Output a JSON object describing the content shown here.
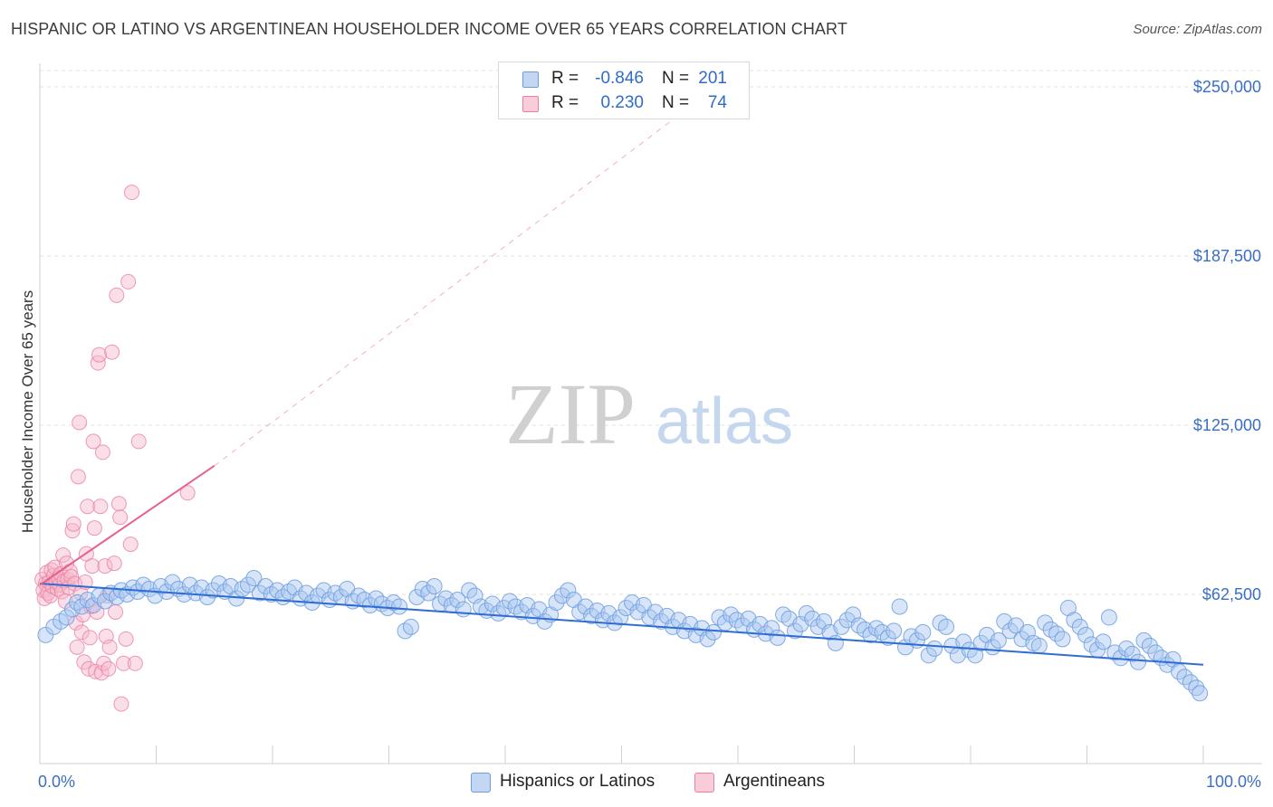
{
  "header": {
    "title": "HISPANIC OR LATINO VS ARGENTINEAN HOUSEHOLDER INCOME OVER 65 YEARS CORRELATION CHART",
    "source": "Source: ZipAtlas.com"
  },
  "watermark": {
    "zip": "ZIP",
    "atlas": "atlas"
  },
  "legend": {
    "rows": [
      {
        "r_label": "R =",
        "r_value": "-0.846",
        "n_label": "N =",
        "n_value": "201",
        "color": "#a9c6f0"
      },
      {
        "r_label": "R =",
        "r_value": "0.230",
        "n_label": "N =",
        "n_value": "74",
        "color": "#f6b8cc"
      }
    ]
  },
  "bottom_legend": {
    "items": [
      {
        "label": "Hispanics or Latinos",
        "color": "#a9c6f0"
      },
      {
        "label": "Argentineans",
        "color": "#f6b8cc"
      }
    ]
  },
  "chart_data": {
    "type": "scatter",
    "title": "HISPANIC OR LATINO VS ARGENTINEAN HOUSEHOLDER INCOME OVER 65 YEARS CORRELATION CHART",
    "xlabel": "",
    "ylabel": "Householder Income Over 65 years",
    "xlim": [
      0,
      100
    ],
    "ylim": [
      0,
      256000
    ],
    "x_tick_labels": [
      "0.0%",
      "100.0%"
    ],
    "y_ticks": [
      62500,
      125000,
      187500,
      250000
    ],
    "y_tick_labels": [
      "$62,500",
      "$125,000",
      "$187,500",
      "$250,000"
    ],
    "grid": "horizontal dashed",
    "legend_position": "top-center",
    "colors": {
      "blue_fill": "#a9c6f0",
      "blue_stroke": "#6b9de0",
      "blue_line": "#2f6cd3",
      "pink_fill": "#f6b8cc",
      "pink_stroke": "#ec7fa1",
      "pink_line": "#e8608a"
    },
    "series": [
      {
        "name": "Hispanics or Latinos",
        "r": -0.846,
        "n": 201,
        "trend": {
          "x": [
            0,
            100
          ],
          "y": [
            66500,
            36500
          ]
        },
        "points": [
          [
            0.5,
            47500
          ],
          [
            1.2,
            50500
          ],
          [
            1.8,
            52500
          ],
          [
            2.3,
            54000
          ],
          [
            2.8,
            57000
          ],
          [
            3.2,
            59500
          ],
          [
            3.6,
            58000
          ],
          [
            4.1,
            60500
          ],
          [
            4.6,
            58500
          ],
          [
            5.1,
            62000
          ],
          [
            5.6,
            60000
          ],
          [
            6.1,
            63000
          ],
          [
            6.6,
            61500
          ],
          [
            7.0,
            64000
          ],
          [
            7.5,
            62500
          ],
          [
            8.0,
            65000
          ],
          [
            8.4,
            63500
          ],
          [
            8.9,
            66000
          ],
          [
            9.4,
            64500
          ],
          [
            9.9,
            62000
          ],
          [
            10.4,
            65500
          ],
          [
            10.9,
            63500
          ],
          [
            11.4,
            67000
          ],
          [
            11.9,
            64500
          ],
          [
            12.4,
            62500
          ],
          [
            12.9,
            66000
          ],
          [
            13.4,
            63000
          ],
          [
            13.9,
            65000
          ],
          [
            14.4,
            61500
          ],
          [
            14.9,
            64000
          ],
          [
            15.4,
            66500
          ],
          [
            15.9,
            63500
          ],
          [
            16.4,
            65500
          ],
          [
            16.9,
            61000
          ],
          [
            17.4,
            64500
          ],
          [
            17.9,
            66000
          ],
          [
            18.4,
            68500
          ],
          [
            18.9,
            63000
          ],
          [
            19.4,
            65500
          ],
          [
            19.9,
            62500
          ],
          [
            20.4,
            64000
          ],
          [
            20.9,
            61500
          ],
          [
            21.4,
            63500
          ],
          [
            21.9,
            65000
          ],
          [
            22.4,
            61000
          ],
          [
            22.9,
            63000
          ],
          [
            23.4,
            59500
          ],
          [
            23.9,
            62000
          ],
          [
            24.4,
            64000
          ],
          [
            24.9,
            60500
          ],
          [
            25.4,
            63000
          ],
          [
            25.9,
            61500
          ],
          [
            26.4,
            64500
          ],
          [
            26.9,
            60000
          ],
          [
            27.4,
            62000
          ],
          [
            27.9,
            60500
          ],
          [
            28.4,
            58500
          ],
          [
            28.9,
            61000
          ],
          [
            29.4,
            59000
          ],
          [
            29.9,
            57500
          ],
          [
            30.4,
            59500
          ],
          [
            30.9,
            58000
          ],
          [
            31.4,
            49000
          ],
          [
            31.9,
            50500
          ],
          [
            32.4,
            61500
          ],
          [
            32.9,
            64500
          ],
          [
            33.4,
            63000
          ],
          [
            33.9,
            65500
          ],
          [
            34.4,
            59000
          ],
          [
            34.9,
            61000
          ],
          [
            35.4,
            58500
          ],
          [
            35.9,
            60500
          ],
          [
            36.4,
            57000
          ],
          [
            36.9,
            64000
          ],
          [
            37.4,
            62000
          ],
          [
            37.9,
            58000
          ],
          [
            38.4,
            56500
          ],
          [
            38.9,
            59000
          ],
          [
            39.4,
            55500
          ],
          [
            39.9,
            57500
          ],
          [
            40.4,
            60000
          ],
          [
            40.9,
            58000
          ],
          [
            41.4,
            56000
          ],
          [
            41.9,
            58500
          ],
          [
            42.4,
            54500
          ],
          [
            42.9,
            57000
          ],
          [
            43.4,
            52500
          ],
          [
            43.9,
            55000
          ],
          [
            44.4,
            59500
          ],
          [
            44.9,
            62000
          ],
          [
            45.4,
            64000
          ],
          [
            45.9,
            60500
          ],
          [
            46.4,
            56000
          ],
          [
            46.9,
            58000
          ],
          [
            47.4,
            54500
          ],
          [
            47.9,
            56500
          ],
          [
            48.4,
            53000
          ],
          [
            48.9,
            55500
          ],
          [
            49.4,
            52000
          ],
          [
            49.9,
            54000
          ],
          [
            50.4,
            57500
          ],
          [
            50.9,
            59500
          ],
          [
            51.4,
            56000
          ],
          [
            51.9,
            58500
          ],
          [
            52.4,
            54000
          ],
          [
            52.9,
            56000
          ],
          [
            53.4,
            52500
          ],
          [
            53.9,
            54500
          ],
          [
            54.4,
            50500
          ],
          [
            54.9,
            53000
          ],
          [
            55.4,
            49000
          ],
          [
            55.9,
            51500
          ],
          [
            56.4,
            47500
          ],
          [
            56.9,
            50000
          ],
          [
            57.4,
            46000
          ],
          [
            57.9,
            48500
          ],
          [
            58.4,
            54000
          ],
          [
            58.9,
            52000
          ],
          [
            59.4,
            55000
          ],
          [
            59.9,
            53000
          ],
          [
            60.4,
            51000
          ],
          [
            60.9,
            53500
          ],
          [
            61.4,
            49500
          ],
          [
            61.9,
            51500
          ],
          [
            62.4,
            48000
          ],
          [
            62.9,
            50000
          ],
          [
            63.4,
            46500
          ],
          [
            63.9,
            55000
          ],
          [
            64.4,
            53500
          ],
          [
            64.9,
            49000
          ],
          [
            65.4,
            51500
          ],
          [
            65.9,
            55500
          ],
          [
            66.4,
            53500
          ],
          [
            66.9,
            50500
          ],
          [
            67.4,
            52500
          ],
          [
            67.9,
            48500
          ],
          [
            68.4,
            44500
          ],
          [
            68.9,
            50500
          ],
          [
            69.4,
            53000
          ],
          [
            69.9,
            55000
          ],
          [
            70.4,
            51000
          ],
          [
            70.9,
            49500
          ],
          [
            71.4,
            47500
          ],
          [
            71.9,
            50000
          ],
          [
            72.4,
            48500
          ],
          [
            72.9,
            46500
          ],
          [
            73.4,
            49000
          ],
          [
            73.9,
            58000
          ],
          [
            74.4,
            43000
          ],
          [
            74.9,
            47000
          ],
          [
            75.4,
            45500
          ],
          [
            75.9,
            48500
          ],
          [
            76.4,
            40000
          ],
          [
            76.9,
            42500
          ],
          [
            77.4,
            52000
          ],
          [
            77.9,
            50500
          ],
          [
            78.4,
            43500
          ],
          [
            78.9,
            40000
          ],
          [
            79.4,
            45000
          ],
          [
            79.9,
            42000
          ],
          [
            80.4,
            40000
          ],
          [
            80.9,
            44500
          ],
          [
            81.4,
            47500
          ],
          [
            81.9,
            43000
          ],
          [
            82.4,
            45500
          ],
          [
            82.9,
            52500
          ],
          [
            83.4,
            49000
          ],
          [
            83.9,
            51000
          ],
          [
            84.4,
            46000
          ],
          [
            84.9,
            48500
          ],
          [
            85.4,
            44500
          ],
          [
            85.9,
            43500
          ],
          [
            86.4,
            52000
          ],
          [
            86.9,
            49500
          ],
          [
            87.4,
            48000
          ],
          [
            87.9,
            46000
          ],
          [
            88.4,
            57500
          ],
          [
            88.9,
            53000
          ],
          [
            89.4,
            50500
          ],
          [
            89.9,
            47500
          ],
          [
            90.4,
            44000
          ],
          [
            90.9,
            42000
          ],
          [
            91.4,
            45000
          ],
          [
            91.9,
            54000
          ],
          [
            92.4,
            41000
          ],
          [
            92.9,
            39000
          ],
          [
            93.4,
            42500
          ],
          [
            93.9,
            40500
          ],
          [
            94.4,
            37500
          ],
          [
            94.9,
            45500
          ],
          [
            95.4,
            43500
          ],
          [
            95.9,
            41000
          ],
          [
            96.4,
            39000
          ],
          [
            96.9,
            36500
          ],
          [
            97.4,
            38500
          ],
          [
            97.9,
            34000
          ],
          [
            98.4,
            32000
          ],
          [
            98.9,
            30000
          ],
          [
            99.4,
            28000
          ],
          [
            99.7,
            26000
          ]
        ]
      },
      {
        "name": "Argentineans",
        "r": 0.23,
        "n": 74,
        "trend": {
          "x": [
            0,
            15
          ],
          "y": [
            66000,
            110000
          ],
          "dashed_to": [
            60,
            256000
          ]
        },
        "points": [
          [
            0.2,
            68000
          ],
          [
            0.3,
            64000
          ],
          [
            0.4,
            61000
          ],
          [
            0.5,
            66500
          ],
          [
            0.6,
            70500
          ],
          [
            0.7,
            63000
          ],
          [
            0.8,
            67000
          ],
          [
            0.9,
            62000
          ],
          [
            1.0,
            71500
          ],
          [
            1.1,
            65500
          ],
          [
            1.2,
            69500
          ],
          [
            1.3,
            72500
          ],
          [
            1.4,
            67000
          ],
          [
            1.5,
            64500
          ],
          [
            1.6,
            68500
          ],
          [
            1.7,
            66000
          ],
          [
            1.8,
            70000
          ],
          [
            1.9,
            63500
          ],
          [
            2.0,
            77000
          ],
          [
            2.1,
            67500
          ],
          [
            2.2,
            60000
          ],
          [
            2.3,
            74000
          ],
          [
            2.4,
            68000
          ],
          [
            2.5,
            65000
          ],
          [
            2.6,
            71000
          ],
          [
            2.7,
            69000
          ],
          [
            2.8,
            86000
          ],
          [
            2.9,
            88500
          ],
          [
            3.0,
            66500
          ],
          [
            3.1,
            52000
          ],
          [
            3.2,
            43000
          ],
          [
            3.3,
            106000
          ],
          [
            3.4,
            126000
          ],
          [
            3.5,
            63000
          ],
          [
            3.6,
            48500
          ],
          [
            3.7,
            55000
          ],
          [
            3.8,
            37500
          ],
          [
            3.9,
            67000
          ],
          [
            4.0,
            77500
          ],
          [
            4.1,
            95000
          ],
          [
            4.2,
            35000
          ],
          [
            4.3,
            46500
          ],
          [
            4.4,
            58000
          ],
          [
            4.5,
            73000
          ],
          [
            4.6,
            119000
          ],
          [
            4.7,
            87000
          ],
          [
            4.8,
            34000
          ],
          [
            4.9,
            56000
          ],
          [
            5.0,
            148000
          ],
          [
            5.1,
            151000
          ],
          [
            5.2,
            95000
          ],
          [
            5.3,
            33500
          ],
          [
            5.4,
            115000
          ],
          [
            5.5,
            37000
          ],
          [
            5.6,
            73000
          ],
          [
            5.7,
            47000
          ],
          [
            5.8,
            62000
          ],
          [
            5.9,
            35000
          ],
          [
            6.0,
            43000
          ],
          [
            6.2,
            152000
          ],
          [
            6.4,
            74000
          ],
          [
            6.5,
            56000
          ],
          [
            6.6,
            173000
          ],
          [
            6.8,
            96000
          ],
          [
            6.9,
            91000
          ],
          [
            7.0,
            22000
          ],
          [
            7.2,
            37000
          ],
          [
            7.4,
            46000
          ],
          [
            7.6,
            178000
          ],
          [
            7.8,
            81000
          ],
          [
            7.9,
            211000
          ],
          [
            8.2,
            37000
          ],
          [
            8.5,
            119000
          ],
          [
            12.7,
            100000
          ]
        ]
      }
    ]
  }
}
